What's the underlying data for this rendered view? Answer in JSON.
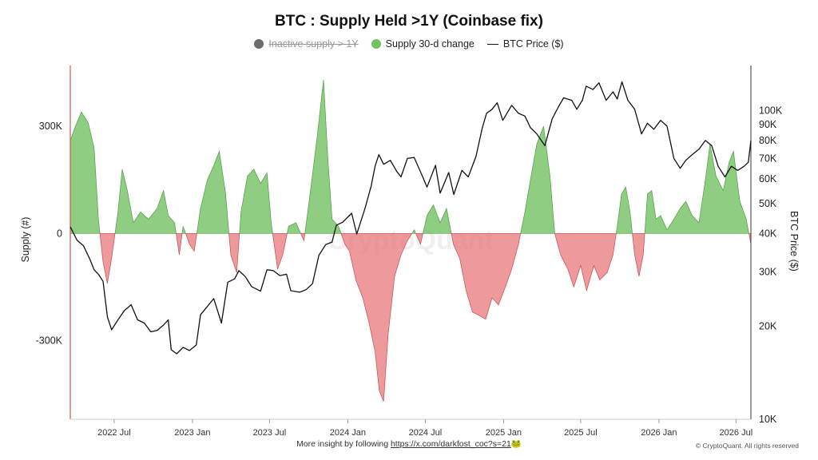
{
  "chart_data": {
    "type": "area",
    "title": "BTC : Supply Held >1Y (Coinbase fix)",
    "legend": [
      {
        "name": "Inactive supply > 1Y",
        "color": "#6b6b70",
        "active": false
      },
      {
        "name": "Supply 30-d change",
        "color": "#73c163",
        "active": true
      },
      {
        "name": "BTC Price ($)",
        "color": "#111111",
        "active": true,
        "symbol": "line"
      }
    ],
    "legend_placement": "top-center",
    "grid": false,
    "ylabel_left": "Supply (#)",
    "ylabel_right": "BTC Price ($)",
    "left_ticks": [
      {
        "value": 300000,
        "label": "300K"
      },
      {
        "value": 0,
        "label": "0"
      },
      {
        "value": -300000,
        "label": "-300K"
      }
    ],
    "right_ticks": [
      {
        "value": 100000,
        "label": "100K"
      },
      {
        "value": 90000,
        "label": "90K"
      },
      {
        "value": 80000,
        "label": "80K"
      },
      {
        "value": 70000,
        "label": "70K"
      },
      {
        "value": 60000,
        "label": "60K"
      },
      {
        "value": 50000,
        "label": "50K"
      },
      {
        "value": 40000,
        "label": "40K"
      },
      {
        "value": 30000,
        "label": "30K"
      },
      {
        "value": 20000,
        "label": "20K"
      },
      {
        "value": 10000,
        "label": "10K"
      }
    ],
    "right_scale": "log",
    "x_ticks": [
      {
        "date": "2022-07-01",
        "label": "2022 Jul"
      },
      {
        "date": "2023-01-01",
        "label": "2023 Jan"
      },
      {
        "date": "2023-07-01",
        "label": "2023 Jul"
      },
      {
        "date": "2024-01-01",
        "label": "2024 Jan"
      },
      {
        "date": "2024-07-01",
        "label": "2024 Jul"
      },
      {
        "date": "2025-01-01",
        "label": "2025 Jan"
      },
      {
        "date": "2025-07-01",
        "label": "2025 Jul"
      },
      {
        "date": "2026-01-01",
        "label": "2026 Jan"
      },
      {
        "date": "2026-07-01",
        "label": "2026 Jul"
      }
    ],
    "x_range": [
      "2022-03-20",
      "2026-08-05"
    ],
    "y_range_left": [
      -520000,
      470000
    ],
    "y_range_right": [
      10000,
      140000
    ],
    "positive_color": "#73c163",
    "negative_color": "#e8777a",
    "supply_change": [
      {
        "x": "2022-03-20",
        "y": 260000
      },
      {
        "x": "2022-04-01",
        "y": 300000
      },
      {
        "x": "2022-04-15",
        "y": 340000
      },
      {
        "x": "2022-05-01",
        "y": 310000
      },
      {
        "x": "2022-05-15",
        "y": 240000
      },
      {
        "x": "2022-05-25",
        "y": 40000
      },
      {
        "x": "2022-06-05",
        "y": -80000
      },
      {
        "x": "2022-06-15",
        "y": -140000
      },
      {
        "x": "2022-06-25",
        "y": -70000
      },
      {
        "x": "2022-07-10",
        "y": 60000
      },
      {
        "x": "2022-07-20",
        "y": 180000
      },
      {
        "x": "2022-08-01",
        "y": 120000
      },
      {
        "x": "2022-08-15",
        "y": 30000
      },
      {
        "x": "2022-09-01",
        "y": 60000
      },
      {
        "x": "2022-09-20",
        "y": 40000
      },
      {
        "x": "2022-10-10",
        "y": 70000
      },
      {
        "x": "2022-10-25",
        "y": 120000
      },
      {
        "x": "2022-11-05",
        "y": 50000
      },
      {
        "x": "2022-11-20",
        "y": 30000
      },
      {
        "x": "2022-12-01",
        "y": -60000
      },
      {
        "x": "2022-12-10",
        "y": 20000
      },
      {
        "x": "2022-12-25",
        "y": -30000
      },
      {
        "x": "2023-01-05",
        "y": -50000
      },
      {
        "x": "2023-01-20",
        "y": 70000
      },
      {
        "x": "2023-02-05",
        "y": 150000
      },
      {
        "x": "2023-02-20",
        "y": 190000
      },
      {
        "x": "2023-03-05",
        "y": 230000
      },
      {
        "x": "2023-03-20",
        "y": 110000
      },
      {
        "x": "2023-04-01",
        "y": -60000
      },
      {
        "x": "2023-04-15",
        "y": -110000
      },
      {
        "x": "2023-04-25",
        "y": 60000
      },
      {
        "x": "2023-05-10",
        "y": 160000
      },
      {
        "x": "2023-05-25",
        "y": 180000
      },
      {
        "x": "2023-06-10",
        "y": 140000
      },
      {
        "x": "2023-06-25",
        "y": 170000
      },
      {
        "x": "2023-07-05",
        "y": 30000
      },
      {
        "x": "2023-07-20",
        "y": -100000
      },
      {
        "x": "2023-08-01",
        "y": -60000
      },
      {
        "x": "2023-08-15",
        "y": 20000
      },
      {
        "x": "2023-09-01",
        "y": 30000
      },
      {
        "x": "2023-09-20",
        "y": -20000
      },
      {
        "x": "2023-10-01",
        "y": 80000
      },
      {
        "x": "2023-10-20",
        "y": 260000
      },
      {
        "x": "2023-11-05",
        "y": 430000
      },
      {
        "x": "2023-11-15",
        "y": 210000
      },
      {
        "x": "2023-11-25",
        "y": 40000
      },
      {
        "x": "2023-12-10",
        "y": 20000
      },
      {
        "x": "2023-12-25",
        "y": -30000
      },
      {
        "x": "2024-01-05",
        "y": -50000
      },
      {
        "x": "2024-01-20",
        "y": -130000
      },
      {
        "x": "2024-02-05",
        "y": -180000
      },
      {
        "x": "2024-02-20",
        "y": -250000
      },
      {
        "x": "2024-03-05",
        "y": -330000
      },
      {
        "x": "2024-03-15",
        "y": -440000
      },
      {
        "x": "2024-03-25",
        "y": -470000
      },
      {
        "x": "2024-04-05",
        "y": -280000
      },
      {
        "x": "2024-04-20",
        "y": -120000
      },
      {
        "x": "2024-05-05",
        "y": -60000
      },
      {
        "x": "2024-05-20",
        "y": -20000
      },
      {
        "x": "2024-06-05",
        "y": 10000
      },
      {
        "x": "2024-06-20",
        "y": -30000
      },
      {
        "x": "2024-07-05",
        "y": 50000
      },
      {
        "x": "2024-07-20",
        "y": 80000
      },
      {
        "x": "2024-08-05",
        "y": 30000
      },
      {
        "x": "2024-08-20",
        "y": 70000
      },
      {
        "x": "2024-09-05",
        "y": -30000
      },
      {
        "x": "2024-09-20",
        "y": -70000
      },
      {
        "x": "2024-10-05",
        "y": -160000
      },
      {
        "x": "2024-10-20",
        "y": -220000
      },
      {
        "x": "2024-11-05",
        "y": -230000
      },
      {
        "x": "2024-11-20",
        "y": -240000
      },
      {
        "x": "2024-12-05",
        "y": -180000
      },
      {
        "x": "2024-12-20",
        "y": -200000
      },
      {
        "x": "2025-01-05",
        "y": -150000
      },
      {
        "x": "2025-01-20",
        "y": -100000
      },
      {
        "x": "2025-02-05",
        "y": -30000
      },
      {
        "x": "2025-02-20",
        "y": 60000
      },
      {
        "x": "2025-03-05",
        "y": 150000
      },
      {
        "x": "2025-03-20",
        "y": 250000
      },
      {
        "x": "2025-04-05",
        "y": 300000
      },
      {
        "x": "2025-04-20",
        "y": 160000
      },
      {
        "x": "2025-05-01",
        "y": 0
      },
      {
        "x": "2025-05-15",
        "y": -60000
      },
      {
        "x": "2025-06-01",
        "y": -100000
      },
      {
        "x": "2025-06-15",
        "y": -150000
      },
      {
        "x": "2025-07-01",
        "y": -90000
      },
      {
        "x": "2025-07-15",
        "y": -160000
      },
      {
        "x": "2025-08-01",
        "y": -90000
      },
      {
        "x": "2025-08-15",
        "y": -130000
      },
      {
        "x": "2025-09-01",
        "y": -110000
      },
      {
        "x": "2025-09-15",
        "y": -60000
      },
      {
        "x": "2025-09-25",
        "y": 20000
      },
      {
        "x": "2025-10-05",
        "y": 110000
      },
      {
        "x": "2025-10-15",
        "y": 130000
      },
      {
        "x": "2025-10-25",
        "y": 60000
      },
      {
        "x": "2025-11-05",
        "y": -60000
      },
      {
        "x": "2025-11-15",
        "y": -120000
      },
      {
        "x": "2025-11-25",
        "y": -60000
      },
      {
        "x": "2025-12-05",
        "y": 110000
      },
      {
        "x": "2025-12-15",
        "y": 120000
      },
      {
        "x": "2025-12-25",
        "y": 40000
      },
      {
        "x": "2026-01-05",
        "y": 50000
      },
      {
        "x": "2026-01-20",
        "y": 10000
      },
      {
        "x": "2026-02-05",
        "y": 40000
      },
      {
        "x": "2026-02-20",
        "y": 70000
      },
      {
        "x": "2026-03-05",
        "y": 90000
      },
      {
        "x": "2026-03-20",
        "y": 50000
      },
      {
        "x": "2026-04-05",
        "y": 30000
      },
      {
        "x": "2026-04-20",
        "y": 150000
      },
      {
        "x": "2026-05-01",
        "y": 250000
      },
      {
        "x": "2026-05-15",
        "y": 160000
      },
      {
        "x": "2026-06-01",
        "y": 120000
      },
      {
        "x": "2026-06-15",
        "y": 200000
      },
      {
        "x": "2026-06-25",
        "y": 230000
      },
      {
        "x": "2026-07-10",
        "y": 90000
      },
      {
        "x": "2026-07-25",
        "y": 40000
      },
      {
        "x": "2026-08-05",
        "y": -30000
      }
    ],
    "btc_price": [
      {
        "x": "2022-03-20",
        "y": 42000
      },
      {
        "x": "2022-04-05",
        "y": 38000
      },
      {
        "x": "2022-04-20",
        "y": 36500
      },
      {
        "x": "2022-05-05",
        "y": 33000
      },
      {
        "x": "2022-05-15",
        "y": 30500
      },
      {
        "x": "2022-05-25",
        "y": 29500
      },
      {
        "x": "2022-06-05",
        "y": 28000
      },
      {
        "x": "2022-06-15",
        "y": 21500
      },
      {
        "x": "2022-06-25",
        "y": 19500
      },
      {
        "x": "2022-07-10",
        "y": 21000
      },
      {
        "x": "2022-07-25",
        "y": 22500
      },
      {
        "x": "2022-08-10",
        "y": 23500
      },
      {
        "x": "2022-08-25",
        "y": 21000
      },
      {
        "x": "2022-09-10",
        "y": 20500
      },
      {
        "x": "2022-09-25",
        "y": 19200
      },
      {
        "x": "2022-10-10",
        "y": 19400
      },
      {
        "x": "2022-10-25",
        "y": 20200
      },
      {
        "x": "2022-11-05",
        "y": 21000
      },
      {
        "x": "2022-11-12",
        "y": 16800
      },
      {
        "x": "2022-11-25",
        "y": 16300
      },
      {
        "x": "2022-12-10",
        "y": 17100
      },
      {
        "x": "2022-12-25",
        "y": 16700
      },
      {
        "x": "2023-01-10",
        "y": 17400
      },
      {
        "x": "2023-01-20",
        "y": 21800
      },
      {
        "x": "2023-02-05",
        "y": 23200
      },
      {
        "x": "2023-02-20",
        "y": 24600
      },
      {
        "x": "2023-03-10",
        "y": 20500
      },
      {
        "x": "2023-03-25",
        "y": 27800
      },
      {
        "x": "2023-04-10",
        "y": 28500
      },
      {
        "x": "2023-04-20",
        "y": 30300
      },
      {
        "x": "2023-05-05",
        "y": 29000
      },
      {
        "x": "2023-05-20",
        "y": 26900
      },
      {
        "x": "2023-06-10",
        "y": 26000
      },
      {
        "x": "2023-06-25",
        "y": 30500
      },
      {
        "x": "2023-07-10",
        "y": 30300
      },
      {
        "x": "2023-07-25",
        "y": 29200
      },
      {
        "x": "2023-08-10",
        "y": 29500
      },
      {
        "x": "2023-08-20",
        "y": 26100
      },
      {
        "x": "2023-09-10",
        "y": 25800
      },
      {
        "x": "2023-09-25",
        "y": 26300
      },
      {
        "x": "2023-10-10",
        "y": 27500
      },
      {
        "x": "2023-10-25",
        "y": 34000
      },
      {
        "x": "2023-11-10",
        "y": 36800
      },
      {
        "x": "2023-11-25",
        "y": 37500
      },
      {
        "x": "2023-12-05",
        "y": 42500
      },
      {
        "x": "2023-12-20",
        "y": 43500
      },
      {
        "x": "2024-01-10",
        "y": 46500
      },
      {
        "x": "2024-01-22",
        "y": 39800
      },
      {
        "x": "2024-02-10",
        "y": 48000
      },
      {
        "x": "2024-02-25",
        "y": 57000
      },
      {
        "x": "2024-03-05",
        "y": 66000
      },
      {
        "x": "2024-03-14",
        "y": 72000
      },
      {
        "x": "2024-03-25",
        "y": 67000
      },
      {
        "x": "2024-04-10",
        "y": 69000
      },
      {
        "x": "2024-04-25",
        "y": 63500
      },
      {
        "x": "2024-05-05",
        "y": 61000
      },
      {
        "x": "2024-05-20",
        "y": 70000
      },
      {
        "x": "2024-06-05",
        "y": 70500
      },
      {
        "x": "2024-06-25",
        "y": 61000
      },
      {
        "x": "2024-07-05",
        "y": 56500
      },
      {
        "x": "2024-07-25",
        "y": 66500
      },
      {
        "x": "2024-08-05",
        "y": 54000
      },
      {
        "x": "2024-08-25",
        "y": 63000
      },
      {
        "x": "2024-09-06",
        "y": 53500
      },
      {
        "x": "2024-09-25",
        "y": 64000
      },
      {
        "x": "2024-10-10",
        "y": 61000
      },
      {
        "x": "2024-10-28",
        "y": 71000
      },
      {
        "x": "2024-11-12",
        "y": 88000
      },
      {
        "x": "2024-11-22",
        "y": 98000
      },
      {
        "x": "2024-12-05",
        "y": 101000
      },
      {
        "x": "2024-12-17",
        "y": 106000
      },
      {
        "x": "2024-12-30",
        "y": 93000
      },
      {
        "x": "2025-01-20",
        "y": 104000
      },
      {
        "x": "2025-02-05",
        "y": 98000
      },
      {
        "x": "2025-02-20",
        "y": 96000
      },
      {
        "x": "2025-03-05",
        "y": 88000
      },
      {
        "x": "2025-03-20",
        "y": 84000
      },
      {
        "x": "2025-04-08",
        "y": 77000
      },
      {
        "x": "2025-04-25",
        "y": 94000
      },
      {
        "x": "2025-05-10",
        "y": 103000
      },
      {
        "x": "2025-05-22",
        "y": 110000
      },
      {
        "x": "2025-06-10",
        "y": 108000
      },
      {
        "x": "2025-06-22",
        "y": 101000
      },
      {
        "x": "2025-07-05",
        "y": 108000
      },
      {
        "x": "2025-07-14",
        "y": 120000
      },
      {
        "x": "2025-07-30",
        "y": 117000
      },
      {
        "x": "2025-08-13",
        "y": 123000
      },
      {
        "x": "2025-08-30",
        "y": 108000
      },
      {
        "x": "2025-09-15",
        "y": 115000
      },
      {
        "x": "2025-09-25",
        "y": 109000
      },
      {
        "x": "2025-10-06",
        "y": 124000
      },
      {
        "x": "2025-10-20",
        "y": 108000
      },
      {
        "x": "2025-11-05",
        "y": 101000
      },
      {
        "x": "2025-11-21",
        "y": 84000
      },
      {
        "x": "2025-12-05",
        "y": 91000
      },
      {
        "x": "2025-12-20",
        "y": 87000
      },
      {
        "x": "2026-01-05",
        "y": 93000
      },
      {
        "x": "2026-01-20",
        "y": 89000
      },
      {
        "x": "2026-02-05",
        "y": 70000
      },
      {
        "x": "2026-02-20",
        "y": 65000
      },
      {
        "x": "2026-03-05",
        "y": 69000
      },
      {
        "x": "2026-03-20",
        "y": 72000
      },
      {
        "x": "2026-04-05",
        "y": 75000
      },
      {
        "x": "2026-04-20",
        "y": 80000
      },
      {
        "x": "2026-05-05",
        "y": 77000
      },
      {
        "x": "2026-05-20",
        "y": 66000
      },
      {
        "x": "2026-06-05",
        "y": 61000
      },
      {
        "x": "2026-06-20",
        "y": 66000
      },
      {
        "x": "2026-07-05",
        "y": 64000
      },
      {
        "x": "2026-07-20",
        "y": 66000
      },
      {
        "x": "2026-07-30",
        "y": 68000
      },
      {
        "x": "2026-08-05",
        "y": 80000
      }
    ]
  },
  "watermark": "CryptoQuant",
  "footer": {
    "text": "More insight by following",
    "link": "https://x.com/darkfost_coc?s=21",
    "emoji": "🐸"
  },
  "copyright": "© CryptoQuant. All rights reserved"
}
